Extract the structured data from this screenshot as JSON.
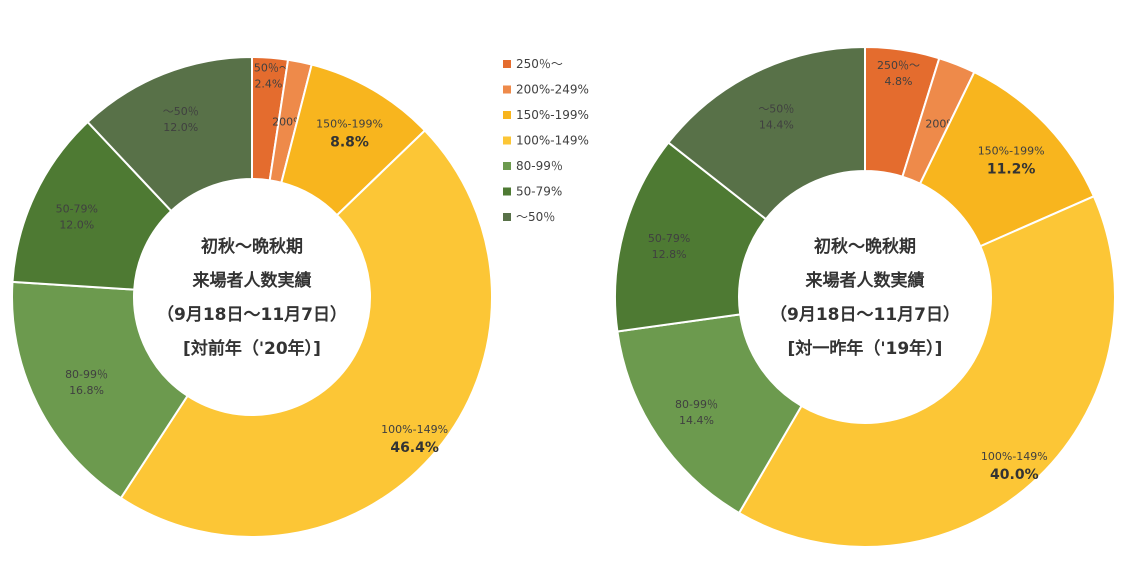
{
  "chart_data": [
    {
      "type": "pie",
      "center_text": [
        "初秋～晩秋期",
        "来場者人数実績",
        "（9月18日～11月7日）",
        "[対前年（'20年）]"
      ],
      "slices": [
        {
          "label": "250％～",
          "pct": "2.4%",
          "value": 2.4,
          "color": "#E46C2E"
        },
        {
          "label": "200%-249%",
          "pct": "1.6%",
          "value": 1.6,
          "color": "#EE8A4A"
        },
        {
          "label": "150%-199%",
          "pct": "8.8%",
          "value": 8.8,
          "color": "#F8B51E",
          "emphasis": true
        },
        {
          "label": "100%-149%",
          "pct": "46.4%",
          "value": 46.4,
          "color": "#FCC636",
          "emphasis": true
        },
        {
          "label": "80-99％",
          "pct": "16.8%",
          "value": 16.8,
          "color": "#6C9A4E"
        },
        {
          "label": "50-79%",
          "pct": "12.0%",
          "value": 12.0,
          "color": "#4E7A33"
        },
        {
          "label": "～50％",
          "pct": "12.0%",
          "value": 12.0,
          "color": "#587148"
        }
      ]
    },
    {
      "type": "pie",
      "center_text": [
        "初秋～晩秋期",
        "来場者人数実績",
        "（9月18日～11月7日）",
        "[対一昨年（'19年）]"
      ],
      "slices": [
        {
          "label": "250％～",
          "pct": "4.8%",
          "value": 4.8,
          "color": "#E46C2E"
        },
        {
          "label": "200%-249%",
          "pct": "2.4%",
          "value": 2.4,
          "color": "#EE8A4A"
        },
        {
          "label": "150%-199%",
          "pct": "11.2%",
          "value": 11.2,
          "color": "#F8B51E",
          "emphasis": true
        },
        {
          "label": "100%-149%",
          "pct": "40.0%",
          "value": 40.0,
          "color": "#FCC636",
          "emphasis": true
        },
        {
          "label": "80-99％",
          "pct": "14.4%",
          "value": 14.4,
          "color": "#6C9A4E"
        },
        {
          "label": "50-79%",
          "pct": "12.8%",
          "value": 12.8,
          "color": "#4E7A33"
        },
        {
          "label": "～50％",
          "pct": "14.4%",
          "value": 14.4,
          "color": "#587148"
        }
      ]
    }
  ],
  "legend": {
    "placement": "between-charts",
    "items": [
      {
        "label": "250％～",
        "color": "#E46C2E"
      },
      {
        "label": "200%-249%",
        "color": "#EE8A4A"
      },
      {
        "label": "150%-199%",
        "color": "#F8B51E"
      },
      {
        "label": "100%-149%",
        "color": "#FCC636"
      },
      {
        "label": "80-99％",
        "color": "#6C9A4E"
      },
      {
        "label": "50-79%",
        "color": "#4E7A33"
      },
      {
        "label": "～50％",
        "color": "#587148"
      }
    ]
  }
}
